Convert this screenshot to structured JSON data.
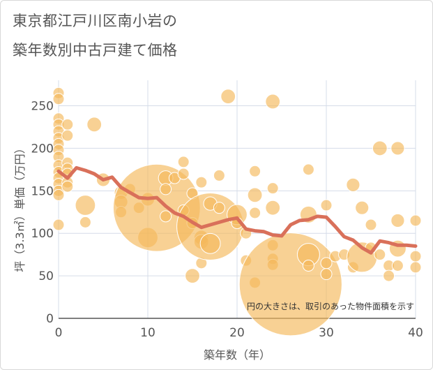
{
  "title": {
    "line1": "東京都江戸川区南小岩の",
    "line2": "築年数別中古戸建て価格"
  },
  "chart_data": {
    "type": "scatter",
    "xlabel": "築年数（年）",
    "ylabel": "坪（3.3㎡）単価（万円）",
    "xlim": [
      0,
      40
    ],
    "ylim": [
      0,
      280
    ],
    "xticks": [
      0,
      10,
      20,
      30,
      40
    ],
    "yticks": [
      0,
      50,
      100,
      150,
      200,
      250
    ],
    "grid": true,
    "note": "円の大きさは、取引のあった物件面積を示す",
    "colors": {
      "bubble": "#f4b95a",
      "line": "#d9705a",
      "grid": "#d5dce8",
      "axis": "#555555"
    },
    "bubbles": [
      {
        "x": 0,
        "y": 265,
        "size": 1
      },
      {
        "x": 0,
        "y": 258,
        "size": 1
      },
      {
        "x": 0,
        "y": 235,
        "size": 1
      },
      {
        "x": 0,
        "y": 228,
        "size": 1
      },
      {
        "x": 0,
        "y": 220,
        "size": 1
      },
      {
        "x": 0,
        "y": 212,
        "size": 1
      },
      {
        "x": 0,
        "y": 205,
        "size": 1
      },
      {
        "x": 0,
        "y": 198,
        "size": 1
      },
      {
        "x": 0,
        "y": 190,
        "size": 1
      },
      {
        "x": 0,
        "y": 180,
        "size": 1
      },
      {
        "x": 0,
        "y": 172,
        "size": 1
      },
      {
        "x": 0,
        "y": 165,
        "size": 1
      },
      {
        "x": 0,
        "y": 158,
        "size": 1
      },
      {
        "x": 0,
        "y": 150,
        "size": 1
      },
      {
        "x": 0,
        "y": 145,
        "size": 1
      },
      {
        "x": 0,
        "y": 110,
        "size": 1
      },
      {
        "x": 1,
        "y": 228,
        "size": 1
      },
      {
        "x": 1,
        "y": 215,
        "size": 1
      },
      {
        "x": 1,
        "y": 183,
        "size": 1
      },
      {
        "x": 1,
        "y": 176,
        "size": 1
      },
      {
        "x": 1,
        "y": 170,
        "size": 1
      },
      {
        "x": 1,
        "y": 160,
        "size": 1
      },
      {
        "x": 1,
        "y": 155,
        "size": 1
      },
      {
        "x": 3,
        "y": 133,
        "size": 1.8
      },
      {
        "x": 3,
        "y": 113,
        "size": 1
      },
      {
        "x": 4,
        "y": 228,
        "size": 1.3
      },
      {
        "x": 5,
        "y": 163,
        "size": 1.2
      },
      {
        "x": 7,
        "y": 148,
        "size": 1.2
      },
      {
        "x": 7,
        "y": 137,
        "size": 1.2
      },
      {
        "x": 7,
        "y": 125,
        "size": 1
      },
      {
        "x": 8,
        "y": 152,
        "size": 1
      },
      {
        "x": 9,
        "y": 130,
        "size": 1
      },
      {
        "x": 10,
        "y": 95,
        "size": 1.8
      },
      {
        "x": 10,
        "y": 140,
        "size": 1.2
      },
      {
        "x": 11,
        "y": 130,
        "size": 7.8
      },
      {
        "x": 12,
        "y": 165,
        "size": 1.3
      },
      {
        "x": 12,
        "y": 152,
        "size": 1
      },
      {
        "x": 12,
        "y": 120,
        "size": 1
      },
      {
        "x": 13,
        "y": 165,
        "size": 1
      },
      {
        "x": 14,
        "y": 184,
        "size": 1
      },
      {
        "x": 14,
        "y": 170,
        "size": 1
      },
      {
        "x": 14,
        "y": 127,
        "size": 1
      },
      {
        "x": 15,
        "y": 147,
        "size": 1
      },
      {
        "x": 15,
        "y": 112,
        "size": 1
      },
      {
        "x": 15,
        "y": 50,
        "size": 1.3
      },
      {
        "x": 16,
        "y": 160,
        "size": 1
      },
      {
        "x": 16,
        "y": 95,
        "size": 1.3
      },
      {
        "x": 16,
        "y": 90,
        "size": 1.3
      },
      {
        "x": 16,
        "y": 65,
        "size": 1
      },
      {
        "x": 17,
        "y": 108,
        "size": 6
      },
      {
        "x": 17,
        "y": 135,
        "size": 1.2
      },
      {
        "x": 17,
        "y": 88,
        "size": 1.8
      },
      {
        "x": 18,
        "y": 168,
        "size": 1
      },
      {
        "x": 18,
        "y": 130,
        "size": 1
      },
      {
        "x": 19,
        "y": 261,
        "size": 1.3
      },
      {
        "x": 20,
        "y": 122,
        "size": 1.8
      },
      {
        "x": 20,
        "y": 112,
        "size": 1
      },
      {
        "x": 21,
        "y": 100,
        "size": 1
      },
      {
        "x": 21,
        "y": 68,
        "size": 1
      },
      {
        "x": 22,
        "y": 173,
        "size": 1
      },
      {
        "x": 22,
        "y": 145,
        "size": 1.3
      },
      {
        "x": 22,
        "y": 124,
        "size": 1
      },
      {
        "x": 22,
        "y": 42,
        "size": 1
      },
      {
        "x": 24,
        "y": 255,
        "size": 1.3
      },
      {
        "x": 24,
        "y": 153,
        "size": 1
      },
      {
        "x": 24,
        "y": 130,
        "size": 1.3
      },
      {
        "x": 24,
        "y": 86,
        "size": 1
      },
      {
        "x": 24,
        "y": 70,
        "size": 1
      },
      {
        "x": 24,
        "y": 63,
        "size": 1
      },
      {
        "x": 26,
        "y": 40,
        "size": 9.2
      },
      {
        "x": 28,
        "y": 175,
        "size": 1
      },
      {
        "x": 28,
        "y": 122,
        "size": 1.5
      },
      {
        "x": 28,
        "y": 75,
        "size": 2
      },
      {
        "x": 28,
        "y": 62,
        "size": 1
      },
      {
        "x": 30,
        "y": 133,
        "size": 1
      },
      {
        "x": 30,
        "y": 65,
        "size": 1
      },
      {
        "x": 30,
        "y": 52,
        "size": 1
      },
      {
        "x": 31,
        "y": 73,
        "size": 1
      },
      {
        "x": 32,
        "y": 75,
        "size": 1
      },
      {
        "x": 33,
        "y": 157,
        "size": 1.2
      },
      {
        "x": 33,
        "y": 60,
        "size": 1
      },
      {
        "x": 34,
        "y": 130,
        "size": 1.2
      },
      {
        "x": 34,
        "y": 72,
        "size": 2.7
      },
      {
        "x": 35,
        "y": 110,
        "size": 1
      },
      {
        "x": 35,
        "y": 83,
        "size": 1
      },
      {
        "x": 36,
        "y": 200,
        "size": 1.3
      },
      {
        "x": 36,
        "y": 75,
        "size": 1
      },
      {
        "x": 37,
        "y": 62,
        "size": 1
      },
      {
        "x": 37,
        "y": 50,
        "size": 1
      },
      {
        "x": 38,
        "y": 200,
        "size": 1.2
      },
      {
        "x": 38,
        "y": 115,
        "size": 1.2
      },
      {
        "x": 38,
        "y": 82,
        "size": 1.5
      },
      {
        "x": 38,
        "y": 62,
        "size": 1
      },
      {
        "x": 40,
        "y": 115,
        "size": 1
      },
      {
        "x": 40,
        "y": 73,
        "size": 1
      },
      {
        "x": 40,
        "y": 60,
        "size": 1
      }
    ],
    "line": {
      "x": [
        0,
        1,
        2,
        3,
        4,
        5,
        6,
        7,
        8,
        9,
        10,
        11,
        12,
        13,
        14,
        15,
        16,
        17,
        18,
        19,
        20,
        21,
        22,
        23,
        24,
        25,
        26,
        27,
        28,
        29,
        30,
        31,
        32,
        33,
        34,
        35,
        36,
        37,
        38,
        39,
        40
      ],
      "y": [
        173,
        165,
        177,
        174,
        170,
        163,
        166,
        154,
        148,
        142,
        141,
        142,
        132,
        124,
        120,
        113,
        107,
        110,
        113,
        116,
        118,
        105,
        103,
        102,
        98,
        97,
        110,
        115,
        116,
        120,
        119,
        108,
        96,
        92,
        83,
        77,
        91,
        89,
        86,
        86,
        85
      ]
    }
  }
}
